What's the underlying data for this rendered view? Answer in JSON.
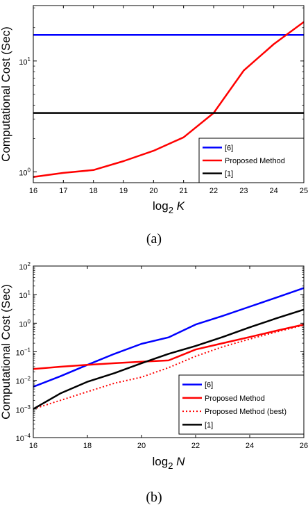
{
  "chart_data": [
    {
      "type": "line",
      "panel_caption": "(a)",
      "ylabel": "Computational Cost (Sec)",
      "xlabel_base": "log",
      "xlabel_sub": "2",
      "xlabel_var": "K",
      "xlim": [
        16,
        25
      ],
      "ylim": [
        0.8,
        31.6
      ],
      "yscale": "log",
      "xticks": [
        "16",
        "17",
        "18",
        "19",
        "20",
        "21",
        "22",
        "23",
        "24",
        "25"
      ],
      "xtick_values": [
        16,
        17,
        18,
        19,
        20,
        21,
        22,
        23,
        24,
        25
      ],
      "yticks": [
        {
          "value": 1,
          "base": "10",
          "exp": "0"
        },
        {
          "value": 10,
          "base": "10",
          "exp": "1"
        }
      ],
      "legend_position": "bottom-right",
      "series": [
        {
          "name": "[6]",
          "color": "#0000ff",
          "dash": false,
          "x": [
            16,
            25
          ],
          "y": [
            17.2,
            17.2
          ]
        },
        {
          "name": "Proposed Method",
          "color": "#ff0000",
          "dash": false,
          "x": [
            16,
            17,
            18,
            19,
            20,
            21,
            22,
            23,
            24,
            25
          ],
          "y": [
            0.9,
            0.98,
            1.04,
            1.25,
            1.55,
            2.05,
            3.4,
            8.2,
            14.2,
            22.5
          ]
        },
        {
          "name": "[1]",
          "color": "#000000",
          "dash": false,
          "x": [
            16,
            25
          ],
          "y": [
            3.4,
            3.4
          ]
        }
      ]
    },
    {
      "type": "line",
      "panel_caption": "(b)",
      "ylabel": "Computational Cost (Sec)",
      "xlabel_base": "log",
      "xlabel_sub": "2",
      "xlabel_var": "N",
      "xlim": [
        16,
        26
      ],
      "ylim": [
        0.0001,
        100
      ],
      "yscale": "log",
      "xticks": [
        "16",
        "18",
        "20",
        "22",
        "24",
        "26"
      ],
      "xtick_values": [
        16,
        18,
        20,
        22,
        24,
        26
      ],
      "yticks": [
        {
          "value": 0.0001,
          "base": "10",
          "exp": "−4"
        },
        {
          "value": 0.001,
          "base": "10",
          "exp": "−3"
        },
        {
          "value": 0.01,
          "base": "10",
          "exp": "−2"
        },
        {
          "value": 0.1,
          "base": "10",
          "exp": "−1"
        },
        {
          "value": 1,
          "base": "10",
          "exp": "0"
        },
        {
          "value": 10,
          "base": "10",
          "exp": "1"
        },
        {
          "value": 100,
          "base": "10",
          "exp": "2"
        }
      ],
      "legend_position": "bottom-right",
      "series": [
        {
          "name": "[6]",
          "color": "#0000ff",
          "dash": false,
          "x": [
            16,
            17,
            18,
            19,
            20,
            21,
            22,
            23,
            24,
            25,
            26
          ],
          "y": [
            0.006,
            0.014,
            0.035,
            0.085,
            0.19,
            0.32,
            0.9,
            1.8,
            3.8,
            8,
            17
          ]
        },
        {
          "name": "Proposed Method",
          "color": "#ff0000",
          "dash": false,
          "x": [
            16,
            17,
            18,
            19,
            20,
            21,
            22,
            23,
            24,
            25,
            26
          ],
          "y": [
            0.025,
            0.03,
            0.035,
            0.04,
            0.045,
            0.05,
            0.12,
            0.2,
            0.33,
            0.55,
            0.9
          ]
        },
        {
          "name": "Proposed Method (best)",
          "color": "#ff0000",
          "dash": true,
          "x": [
            16,
            17,
            18,
            19,
            20,
            21,
            22,
            23,
            24,
            25,
            26
          ],
          "y": [
            0.001,
            0.002,
            0.004,
            0.008,
            0.013,
            0.028,
            0.07,
            0.15,
            0.28,
            0.5,
            0.85
          ]
        },
        {
          "name": "[1]",
          "color": "#000000",
          "dash": false,
          "x": [
            16,
            17,
            18,
            19,
            20,
            21,
            22,
            23,
            24,
            25,
            26
          ],
          "y": [
            0.001,
            0.0035,
            0.009,
            0.018,
            0.04,
            0.085,
            0.16,
            0.33,
            0.72,
            1.5,
            3.0
          ]
        }
      ]
    }
  ]
}
